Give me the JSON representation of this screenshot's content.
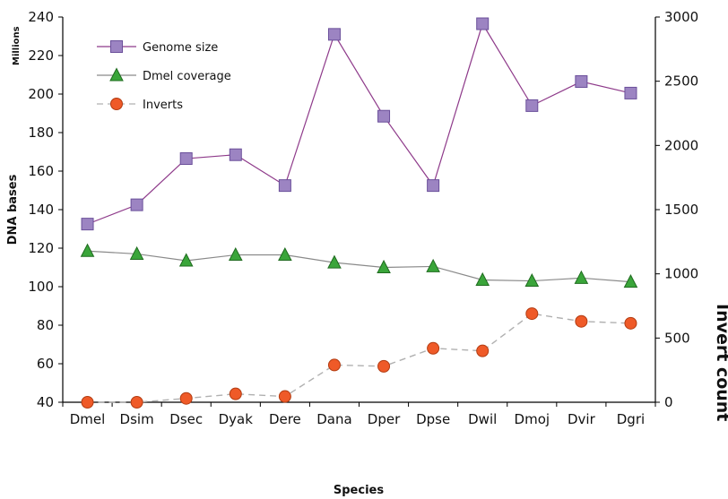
{
  "chart_data": {
    "type": "line",
    "categories": [
      "Dmel",
      "Dsim",
      "Dsec",
      "Dyak",
      "Dere",
      "Dana",
      "Dper",
      "Dpse",
      "Dwil",
      "Dmoj",
      "Dvir",
      "Dgri"
    ],
    "xlabel": "Species",
    "ylabel": "DNA  bases",
    "ylabel_unit": "Millions",
    "y2label": "Invert count",
    "ylim": [
      40,
      240
    ],
    "yticks": [
      40,
      60,
      80,
      100,
      120,
      140,
      160,
      180,
      200,
      220,
      240
    ],
    "y2lim": [
      0,
      3000
    ],
    "y2ticks": [
      0,
      500,
      1000,
      1500,
      2000,
      2500,
      3000
    ],
    "legend_position": "top-left",
    "grid": false,
    "series": [
      {
        "name": "Genome size",
        "axis": "left",
        "marker": "square",
        "line_style": "solid",
        "color": "#8e3a8a",
        "marker_color": "#9c84c2",
        "values": [
          132.5,
          142.5,
          166.5,
          168.5,
          152.5,
          231,
          188.5,
          152.5,
          236.5,
          194,
          206.5,
          200.5
        ]
      },
      {
        "name": "Dmel coverage",
        "axis": "left",
        "marker": "triangle",
        "line_style": "solid",
        "color": "#8a8a8a",
        "marker_color": "#3aa53a",
        "values": [
          118.5,
          117,
          113.5,
          116.5,
          116.5,
          112.5,
          110,
          110.5,
          103.5,
          103,
          104.5,
          102.5
        ]
      },
      {
        "name": "Inverts",
        "axis": "right",
        "marker": "circle",
        "line_style": "dashed",
        "color": "#b0b0b0",
        "marker_color": "#ef5a28",
        "values": [
          0,
          0,
          30,
          65,
          45,
          290,
          280,
          420,
          400,
          690,
          630,
          615
        ]
      }
    ]
  }
}
